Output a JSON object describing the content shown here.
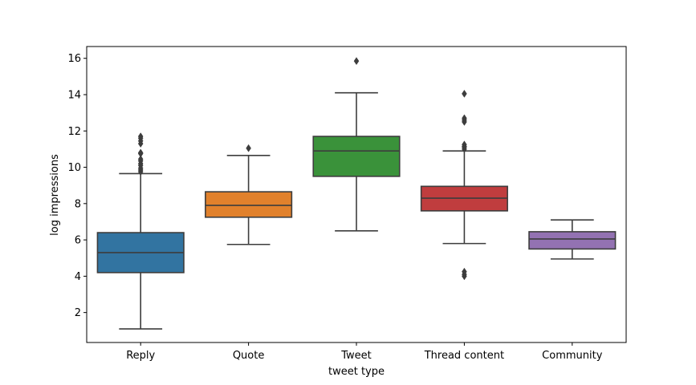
{
  "chart_data": {
    "type": "box",
    "title": "",
    "xlabel": "tweet type",
    "ylabel": "log impressions",
    "ylim": [
      0.35,
      16.65
    ],
    "yticks": [
      2,
      4,
      6,
      8,
      10,
      12,
      14,
      16
    ],
    "grid": false,
    "categories": [
      "Reply",
      "Quote",
      "Tweet",
      "Thread content",
      "Community"
    ],
    "boxes": [
      {
        "category": "Reply",
        "color": "#3274a1",
        "whisker_low": 1.1,
        "q1": 4.2,
        "median": 5.3,
        "q3": 6.4,
        "whisker_high": 9.65,
        "outliers": [
          9.75,
          9.85,
          9.95,
          10.1,
          10.2,
          10.35,
          10.45,
          10.75,
          10.8,
          11.3,
          11.45,
          11.6,
          11.7
        ]
      },
      {
        "category": "Quote",
        "color": "#e1812c",
        "whisker_low": 5.75,
        "q1": 7.25,
        "median": 7.9,
        "q3": 8.65,
        "whisker_high": 10.65,
        "outliers": [
          11.05
        ]
      },
      {
        "category": "Tweet",
        "color": "#3a923a",
        "whisker_low": 6.5,
        "q1": 9.5,
        "median": 10.9,
        "q3": 11.7,
        "whisker_high": 14.1,
        "outliers": [
          15.85
        ]
      },
      {
        "category": "Thread content",
        "color": "#c03d3e",
        "whisker_low": 5.8,
        "q1": 7.6,
        "median": 8.3,
        "q3": 8.95,
        "whisker_high": 10.9,
        "outliers": [
          4.0,
          4.1,
          4.25,
          11.0,
          11.1,
          11.15,
          11.25,
          12.5,
          12.6,
          12.7,
          14.05
        ]
      },
      {
        "category": "Community",
        "color": "#9372b2",
        "whisker_low": 4.95,
        "q1": 5.5,
        "median": 6.05,
        "q3": 6.45,
        "whisker_high": 7.1,
        "outliers": []
      }
    ]
  }
}
